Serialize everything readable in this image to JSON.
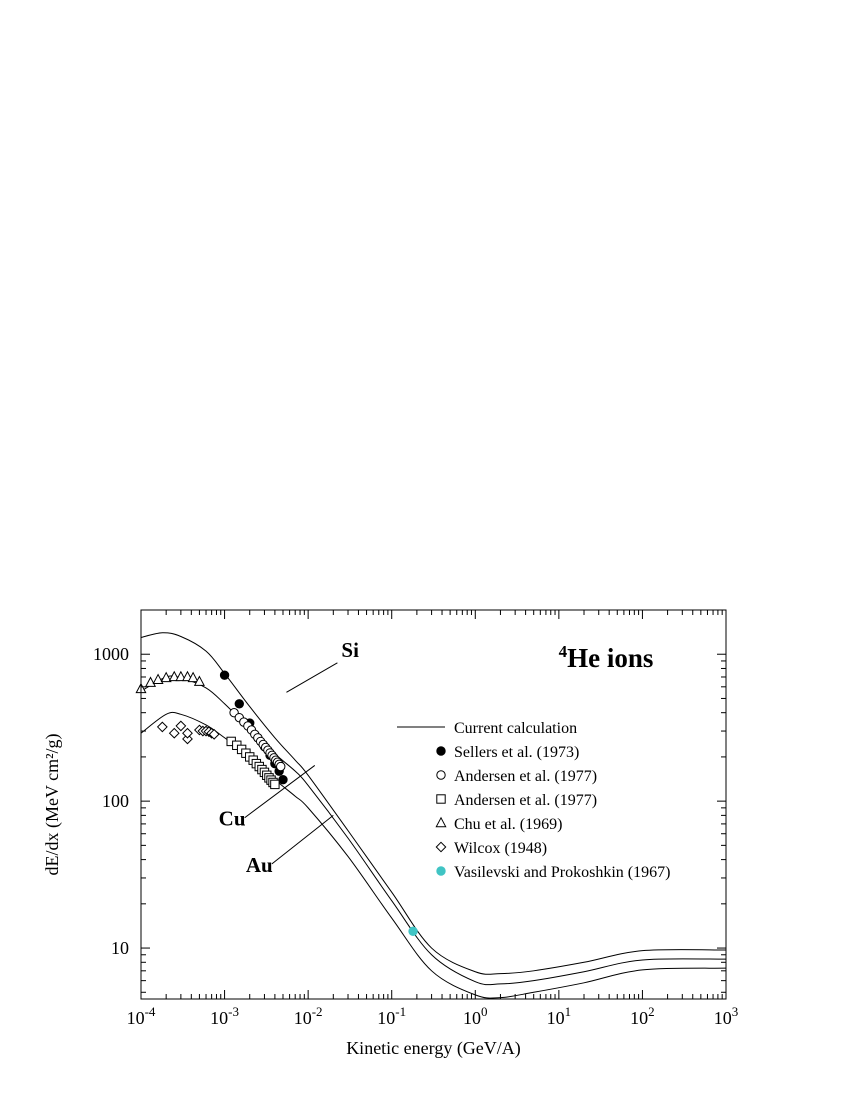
{
  "chart_data": {
    "type": "scatter",
    "title": "He ions",
    "title_superscript": "4",
    "xlabel": "Kinetic energy (GeV/A)",
    "ylabel": "dE/dx (MeV cm²/g)",
    "x_scale": "log",
    "y_scale": "log",
    "xlim": [
      0.0001,
      1000
    ],
    "ylim": [
      4.5,
      2000
    ],
    "grid": false,
    "legend_position": "right",
    "x_ticks": [
      {
        "value": 0.0001,
        "base": "10",
        "exp": "-4"
      },
      {
        "value": 0.001,
        "base": "10",
        "exp": "-3"
      },
      {
        "value": 0.01,
        "base": "10",
        "exp": "-2"
      },
      {
        "value": 0.1,
        "base": "10",
        "exp": "-1"
      },
      {
        "value": 1,
        "base": "10",
        "exp": "0"
      },
      {
        "value": 10,
        "base": "10",
        "exp": "1"
      },
      {
        "value": 100,
        "base": "10",
        "exp": "2"
      },
      {
        "value": 1000,
        "base": "10",
        "exp": "3"
      }
    ],
    "y_ticks": [
      {
        "value": 10,
        "label": "10"
      },
      {
        "value": 100,
        "label": "100"
      },
      {
        "value": 1000,
        "label": "1000"
      }
    ],
    "curve_labels": [
      {
        "text": "Si",
        "curve": "Si",
        "x": 0.0055,
        "y": 550,
        "label_x": 0.025,
        "label_y": 960
      },
      {
        "text": "Cu",
        "curve": "Cu",
        "x": 0.012,
        "y": 175,
        "label_x": 0.00085,
        "label_y": 68
      },
      {
        "text": "Au",
        "curve": "Au",
        "x": 0.02,
        "y": 80,
        "label_x": 0.0018,
        "label_y": 33
      }
    ],
    "curves": [
      {
        "name": "Si",
        "x": [
          0.0001,
          0.00018,
          0.0003,
          0.0006,
          0.001,
          0.002,
          0.004,
          0.007,
          0.01,
          0.03,
          0.1,
          0.3,
          1,
          2,
          5,
          20,
          100,
          1000
        ],
        "y": [
          1300,
          1400,
          1320,
          1050,
          740,
          440,
          270,
          190,
          150,
          63,
          24,
          10,
          6.9,
          6.7,
          7.0,
          8.0,
          9.6,
          9.7
        ]
      },
      {
        "name": "Cu",
        "x": [
          0.0001,
          0.0002,
          0.0003,
          0.0006,
          0.001,
          0.002,
          0.004,
          0.007,
          0.01,
          0.03,
          0.1,
          0.3,
          1,
          2,
          5,
          20,
          100,
          1000
        ],
        "y": [
          560,
          700,
          690,
          590,
          460,
          310,
          210,
          160,
          128,
          56,
          21,
          9.0,
          5.9,
          5.7,
          6.0,
          6.9,
          8.3,
          8.4
        ]
      },
      {
        "name": "Au",
        "x": [
          0.0001,
          0.0002,
          0.0003,
          0.0006,
          0.001,
          0.002,
          0.004,
          0.007,
          0.01,
          0.03,
          0.1,
          0.3,
          1,
          2,
          5,
          20,
          100,
          1000
        ],
        "y": [
          290,
          390,
          390,
          330,
          270,
          200,
          140,
          108,
          90,
          42,
          16,
          7.0,
          4.8,
          4.6,
          5.0,
          5.8,
          7.1,
          7.3
        ]
      }
    ],
    "series": [
      {
        "name": "Current calculation",
        "marker": "line",
        "color": "#000000"
      },
      {
        "name": "Sellers et al. (1973)",
        "marker": "filled-circle",
        "color": "#000000",
        "x": [
          0.001,
          0.0015,
          0.002,
          0.0025,
          0.003,
          0.0035,
          0.004,
          0.0045,
          0.005
        ],
        "y": [
          720,
          460,
          340,
          270,
          235,
          205,
          180,
          160,
          140
        ]
      },
      {
        "name": "Andersen et al. (1977)",
        "marker": "open-circle",
        "color": "#000000",
        "x": [
          0.0013,
          0.0015,
          0.0017,
          0.0019,
          0.0021,
          0.0023,
          0.0025,
          0.0027,
          0.0029,
          0.0031,
          0.0033,
          0.0035,
          0.0037,
          0.0039,
          0.0041,
          0.0043,
          0.0045,
          0.0047
        ],
        "y": [
          400,
          370,
          345,
          325,
          305,
          285,
          270,
          255,
          243,
          232,
          222,
          213,
          205,
          197,
          190,
          184,
          178,
          172
        ]
      },
      {
        "name": "Andersen et al. (1977)",
        "marker": "open-square",
        "color": "#000000",
        "x": [
          0.0012,
          0.0014,
          0.0016,
          0.0018,
          0.002,
          0.0022,
          0.0024,
          0.0026,
          0.0028,
          0.003,
          0.0032,
          0.0034,
          0.0036,
          0.0038,
          0.004
        ],
        "y": [
          255,
          240,
          225,
          212,
          200,
          190,
          180,
          172,
          164,
          157,
          150,
          144,
          139,
          134,
          130
        ]
      },
      {
        "name": "Chu et al. (1969)",
        "marker": "open-triangle",
        "color": "#000000",
        "x": [
          0.0001,
          0.00013,
          0.00016,
          0.0002,
          0.00025,
          0.0003,
          0.00036,
          0.00042,
          0.0005
        ],
        "y": [
          580,
          640,
          670,
          690,
          700,
          700,
          700,
          690,
          650
        ]
      },
      {
        "name": "Wilcox (1948)",
        "marker": "open-diamond",
        "color": "#000000",
        "x": [
          0.00018,
          0.00025,
          0.0003,
          0.00036,
          0.00036,
          0.0005,
          0.00055,
          0.0006,
          0.00065,
          0.0007,
          0.00075
        ],
        "y": [
          320,
          290,
          325,
          265,
          290,
          305,
          300,
          300,
          297,
          290,
          285
        ]
      },
      {
        "name": "Vasilevski and Prokoshkin (1967)",
        "marker": "filled-circle",
        "color": "#40c4c4",
        "x": [
          0.18
        ],
        "y": [
          13
        ]
      }
    ]
  }
}
